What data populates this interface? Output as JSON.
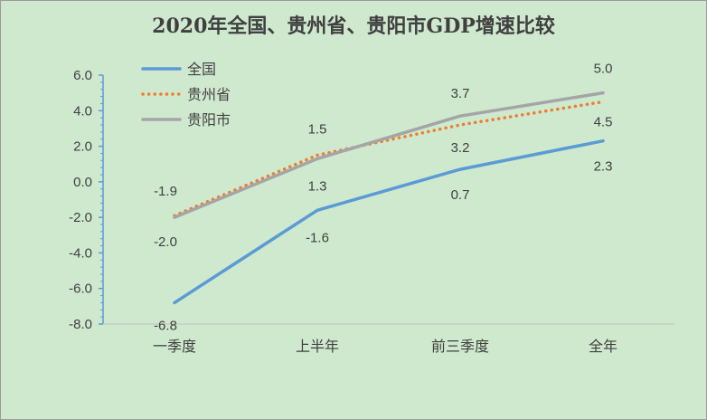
{
  "chart_data": {
    "type": "line",
    "title": "2020年全国、贵州省、贵阳市GDP增速比较",
    "categories": [
      "一季度",
      "上半年",
      "前三季度",
      "全年"
    ],
    "ylim": [
      -8.0,
      6.0
    ],
    "yticks": [
      -8.0,
      -6.0,
      -4.0,
      -2.0,
      0.0,
      2.0,
      4.0,
      6.0
    ],
    "ytick_labels": [
      "-8.0",
      "-6.0",
      "-4.0",
      "-2.0",
      "0.0",
      "2.0",
      "4.0",
      "6.0"
    ],
    "legend_position": "top-left",
    "grid": false,
    "series": [
      {
        "name": "全国",
        "values": [
          -6.8,
          -1.6,
          0.7,
          2.3
        ],
        "labels": [
          "-6.8",
          "-1.6",
          "0.7",
          "2.3"
        ],
        "color": "#5b9bd5",
        "style": "solid"
      },
      {
        "name": "贵州省",
        "values": [
          -1.9,
          1.5,
          3.2,
          4.5
        ],
        "labels": [
          "-1.9",
          "1.5",
          "3.2",
          "4.5"
        ],
        "color": "#ed7d31",
        "style": "dotted"
      },
      {
        "name": "贵阳市",
        "values": [
          -2.0,
          1.3,
          3.7,
          5.0
        ],
        "labels": [
          "-2.0",
          "1.3",
          "3.7",
          "5.0"
        ],
        "color": "#a5a5a5",
        "style": "solid"
      }
    ]
  }
}
